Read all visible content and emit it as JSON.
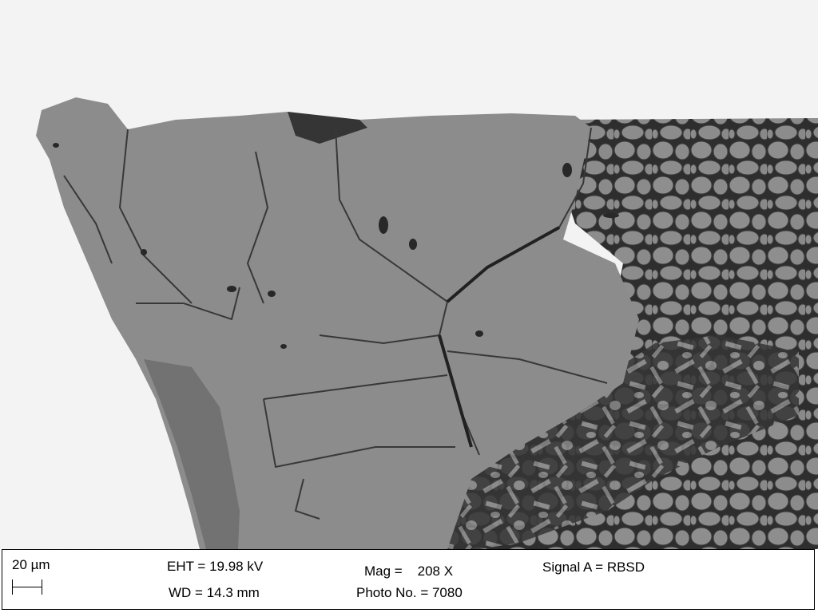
{
  "image": {
    "subject": "backscattered electron micrograph of a polished cross-section",
    "colors": {
      "background": "#ffffff",
      "matrix_gray": "#8c8c8c",
      "dark_phase": "#6c6c6c",
      "pore_black": "#1a1a1a",
      "grain_edge": "#3a3a3a"
    }
  },
  "data_bar": {
    "scale_label": "20 µm",
    "scale_icon": "scale-bar-icon",
    "eht": "EHT = 19.98 kV",
    "wd": "WD = 14.3 mm",
    "mag": "Mag =    208 X",
    "photo": "Photo No. = 7080",
    "signal": "Signal A = RBSD"
  }
}
